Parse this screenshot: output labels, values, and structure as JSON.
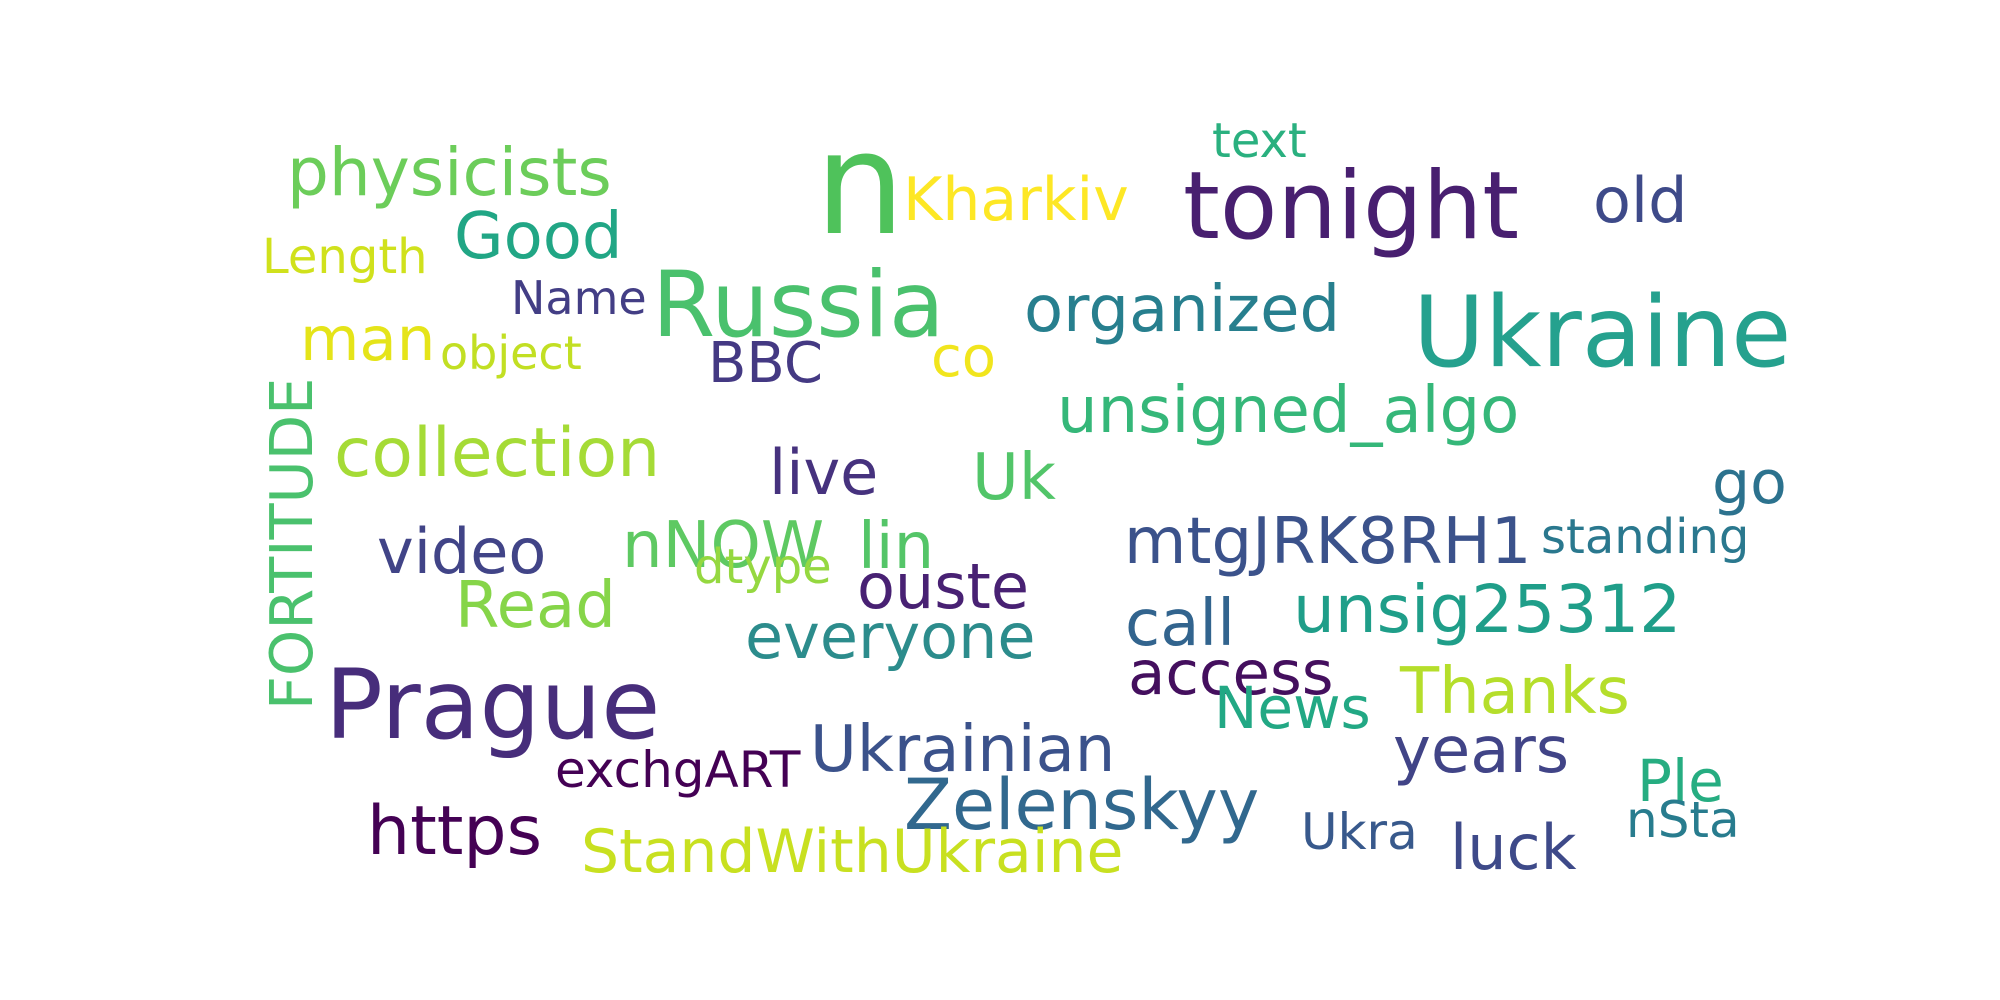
{
  "words": [
    {
      "text": "n",
      "color": "#4fc25b"
    },
    {
      "text": "tonight",
      "color": "#481f70"
    },
    {
      "text": "Ukraine",
      "color": "#25a18e"
    },
    {
      "text": "Russia",
      "color": "#4ac16d"
    },
    {
      "text": "Prague",
      "color": "#472d7b"
    },
    {
      "text": "physicists",
      "color": "#6ccd5a"
    },
    {
      "text": "Kharkiv",
      "color": "#fde725"
    },
    {
      "text": "text",
      "color": "#2ab07f"
    },
    {
      "text": "old",
      "color": "#3e4a89"
    },
    {
      "text": "Good",
      "color": "#21a685"
    },
    {
      "text": "Length",
      "color": "#d0e11c"
    },
    {
      "text": "Name",
      "color": "#433e85"
    },
    {
      "text": "organized",
      "color": "#277f8e"
    },
    {
      "text": "man",
      "color": "#e5e419"
    },
    {
      "text": "object",
      "color": "#c2df23"
    },
    {
      "text": "BBC",
      "color": "#443983"
    },
    {
      "text": "co",
      "color": "#f1e51d"
    },
    {
      "text": "unsigned_algo",
      "color": "#35b779"
    },
    {
      "text": "FORTITUDE",
      "color": "#4ac16d"
    },
    {
      "text": "collection",
      "color": "#a5db36"
    },
    {
      "text": "live",
      "color": "#46327e"
    },
    {
      "text": "Uk",
      "color": "#52c569"
    },
    {
      "text": "go",
      "color": "#2c728e"
    },
    {
      "text": "video",
      "color": "#414487"
    },
    {
      "text": "nNOW",
      "color": "#5ec962"
    },
    {
      "text": "lin",
      "color": "#54c568"
    },
    {
      "text": "mtgJRK8RH1",
      "color": "#3b528b"
    },
    {
      "text": "standing",
      "color": "#2a788e"
    },
    {
      "text": "dtype",
      "color": "#95d840"
    },
    {
      "text": "ouste",
      "color": "#482173"
    },
    {
      "text": "Read",
      "color": "#86d549"
    },
    {
      "text": "everyone",
      "color": "#2c8c8c"
    },
    {
      "text": "call",
      "color": "#32648e"
    },
    {
      "text": "unsig25312",
      "color": "#1f9e89"
    },
    {
      "text": "access",
      "color": "#440f5e"
    },
    {
      "text": "Thanks",
      "color": "#b5de2b"
    },
    {
      "text": "News",
      "color": "#22a884"
    },
    {
      "text": "Ukrainian",
      "color": "#3b528b"
    },
    {
      "text": "years",
      "color": "#414487"
    },
    {
      "text": "exchgART",
      "color": "#440154"
    },
    {
      "text": "Ple",
      "color": "#26ad81"
    },
    {
      "text": "Zelenskyy",
      "color": "#31688e"
    },
    {
      "text": "https",
      "color": "#440154"
    },
    {
      "text": "StandWithUkraine",
      "color": "#c8e020"
    },
    {
      "text": "Ukra",
      "color": "#38598c"
    },
    {
      "text": "luck",
      "color": "#3e4a89"
    },
    {
      "text": "nSta",
      "color": "#287c8e"
    }
  ]
}
